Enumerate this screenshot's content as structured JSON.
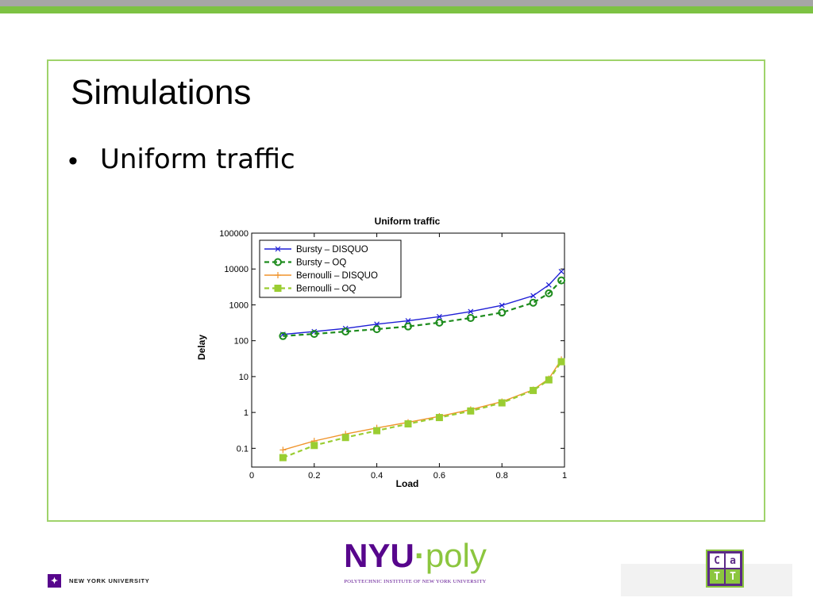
{
  "slide": {
    "title": "Simulations",
    "bullet": "Uniform traffic",
    "bullet_symbol": "•"
  },
  "colors": {
    "top_bar": "#a6a6a6",
    "accent_green": "#7dc243",
    "frame_border": "#9fd36b",
    "nyu_purple": "#57068c"
  },
  "footer": {
    "nyu_text": "NEW YORK UNIVERSITY",
    "nyu_mark": "✦",
    "poly_nyu": "NYU",
    "poly_dot": "·",
    "poly_poly": "poly",
    "poly_sub": "POLYTECHNIC INSTITUTE OF NEW YORK UNIVERSITY",
    "catt_letters": [
      "C",
      "a",
      "T",
      "T"
    ]
  },
  "chart_data": {
    "type": "line",
    "title": "Uniform traffic",
    "xlabel": "Load",
    "ylabel": "Delay",
    "xlim": [
      0,
      1
    ],
    "ylim": [
      0.03,
      100000
    ],
    "yscale": "log",
    "xticks": [
      0,
      0.2,
      0.4,
      0.6,
      0.8,
      1
    ],
    "xtick_labels": [
      "0",
      "0.2",
      "0.4",
      "0.6",
      "0.8",
      "1"
    ],
    "yticks": [
      0.1,
      1,
      10,
      100,
      1000,
      10000,
      100000
    ],
    "ytick_labels": [
      "0.1",
      "1",
      "10",
      "100",
      "1000",
      "10000",
      "100000"
    ],
    "grid": false,
    "legend_position": "top-left",
    "series": [
      {
        "name": "Bursty – DISQUO",
        "color": "#1f1fd6",
        "dash": "solid",
        "marker": "x",
        "x": [
          0.1,
          0.2,
          0.3,
          0.4,
          0.5,
          0.6,
          0.7,
          0.8,
          0.9,
          0.95,
          0.99
        ],
        "y": [
          150,
          180,
          220,
          290,
          360,
          470,
          650,
          970,
          1800,
          3600,
          8500
        ]
      },
      {
        "name": "Bursty – OQ",
        "color": "#1e8c1e",
        "dash": "dashed",
        "marker": "o",
        "x": [
          0.1,
          0.2,
          0.3,
          0.4,
          0.5,
          0.6,
          0.7,
          0.8,
          0.9,
          0.95,
          0.99
        ],
        "y": [
          135,
          155,
          180,
          210,
          250,
          320,
          430,
          610,
          1150,
          2100,
          4800
        ]
      },
      {
        "name": "Bernoulli – DISQUO",
        "color": "#f0942c",
        "dash": "solid",
        "marker": "+",
        "x": [
          0.1,
          0.2,
          0.3,
          0.4,
          0.5,
          0.6,
          0.7,
          0.8,
          0.9,
          0.95,
          0.99
        ],
        "y": [
          0.09,
          0.16,
          0.25,
          0.37,
          0.53,
          0.78,
          1.2,
          2.0,
          4.3,
          8.7,
          30
        ]
      },
      {
        "name": "Bernoulli – OQ",
        "color": "#9acd32",
        "dash": "dashed",
        "marker": "s",
        "x": [
          0.1,
          0.2,
          0.3,
          0.4,
          0.5,
          0.6,
          0.7,
          0.8,
          0.9,
          0.95,
          0.99
        ],
        "y": [
          0.055,
          0.12,
          0.2,
          0.31,
          0.48,
          0.72,
          1.1,
          1.85,
          4.1,
          8.1,
          26
        ]
      }
    ]
  }
}
